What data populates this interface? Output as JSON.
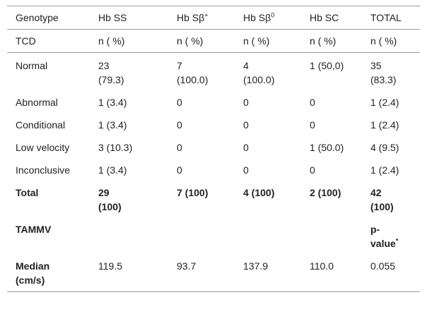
{
  "table": {
    "header": [
      [
        "Genotype",
        "Hb SS",
        {
          "text": "Hb Sβ",
          "sup": "+"
        },
        {
          "text": "Hb Sβ",
          "sup": "0"
        },
        "Hb SC",
        "TOTAL"
      ],
      [
        "TCD",
        "n ( %)",
        "n ( %)",
        "n ( %)",
        "n ( %)",
        "n ( %)"
      ]
    ],
    "rows": [
      [
        "Normal",
        "23 (79.3)",
        "7 (100.0)",
        "4 (100.0)",
        "1 (50,0)",
        "35 (83.3)"
      ],
      [
        "Abnormal",
        "1 (3.4)",
        "0",
        "0",
        "0",
        "1 (2.4)"
      ],
      [
        "Conditional",
        "1 (3.4)",
        "0",
        "0",
        "0",
        "1 (2.4)"
      ],
      [
        "Low velocity",
        "3 (10.3)",
        "0",
        "0",
        "1 (50.0)",
        "4 (9.5)"
      ],
      [
        "Inconclusive",
        "1 (3.4)",
        "0",
        "0",
        "0",
        "1 (2.4)"
      ],
      [
        "Total",
        "29 (100)",
        "7 (100)",
        "4 (100)",
        "2 (100)",
        "42 (100)"
      ],
      [
        "TAMMV",
        null,
        null,
        null,
        null,
        {
          "text": "p-value",
          "sup": "*"
        }
      ],
      [
        "Median (cm/s)",
        "119.5",
        "93.7",
        "137.9",
        "110.0",
        "0.055"
      ]
    ]
  }
}
